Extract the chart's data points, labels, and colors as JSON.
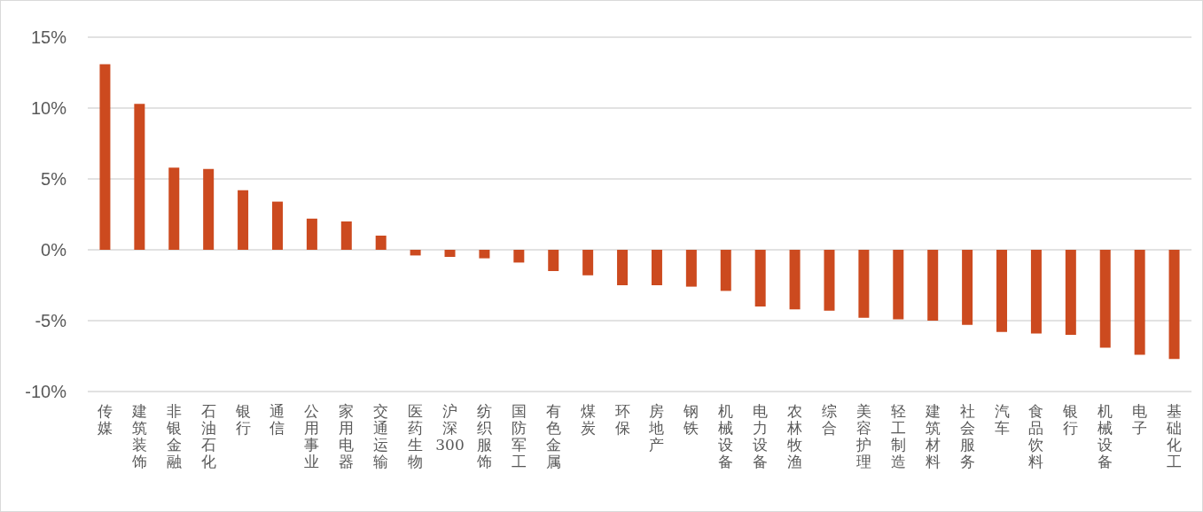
{
  "chart_data": {
    "type": "bar",
    "categories": [
      "传媒",
      "建筑装饰",
      "非银金融",
      "石油石化",
      "银行",
      "通信",
      "公用事业",
      "家用电器",
      "交通运输",
      "医药生物",
      "沪深300",
      "纺织服饰",
      "国防军工",
      "有色金属",
      "煤炭",
      "环保",
      "房地产",
      "钢铁",
      "机械设备",
      "电力设备",
      "农林牧渔",
      "综合",
      "美容护理",
      "轻工制造",
      "建筑材料",
      "社会服务",
      "汽车",
      "食品饮料",
      "银行",
      "机械设备",
      "电子",
      "基础化工"
    ],
    "values": [
      13.1,
      10.3,
      5.8,
      5.7,
      4.2,
      3.4,
      2.2,
      2.0,
      1.0,
      -0.4,
      -0.5,
      -0.6,
      -0.9,
      -1.5,
      -1.8,
      -2.5,
      -2.5,
      -2.6,
      -2.9,
      -4.0,
      -4.2,
      -4.3,
      -4.8,
      -4.9,
      -5.0,
      -5.3,
      -5.8,
      -5.9,
      -6.0,
      -6.9,
      -7.4,
      -7.7
    ],
    "color": "#cc4a1f",
    "ylim": [
      -10,
      15
    ],
    "yticks": [
      {
        "value": -10,
        "label": "-10%"
      },
      {
        "value": -5,
        "label": "-5%"
      },
      {
        "value": 0,
        "label": "0%"
      },
      {
        "value": 5,
        "label": "5%"
      },
      {
        "value": 10,
        "label": "10%"
      },
      {
        "value": 15,
        "label": "15%"
      }
    ],
    "grid": true
  }
}
